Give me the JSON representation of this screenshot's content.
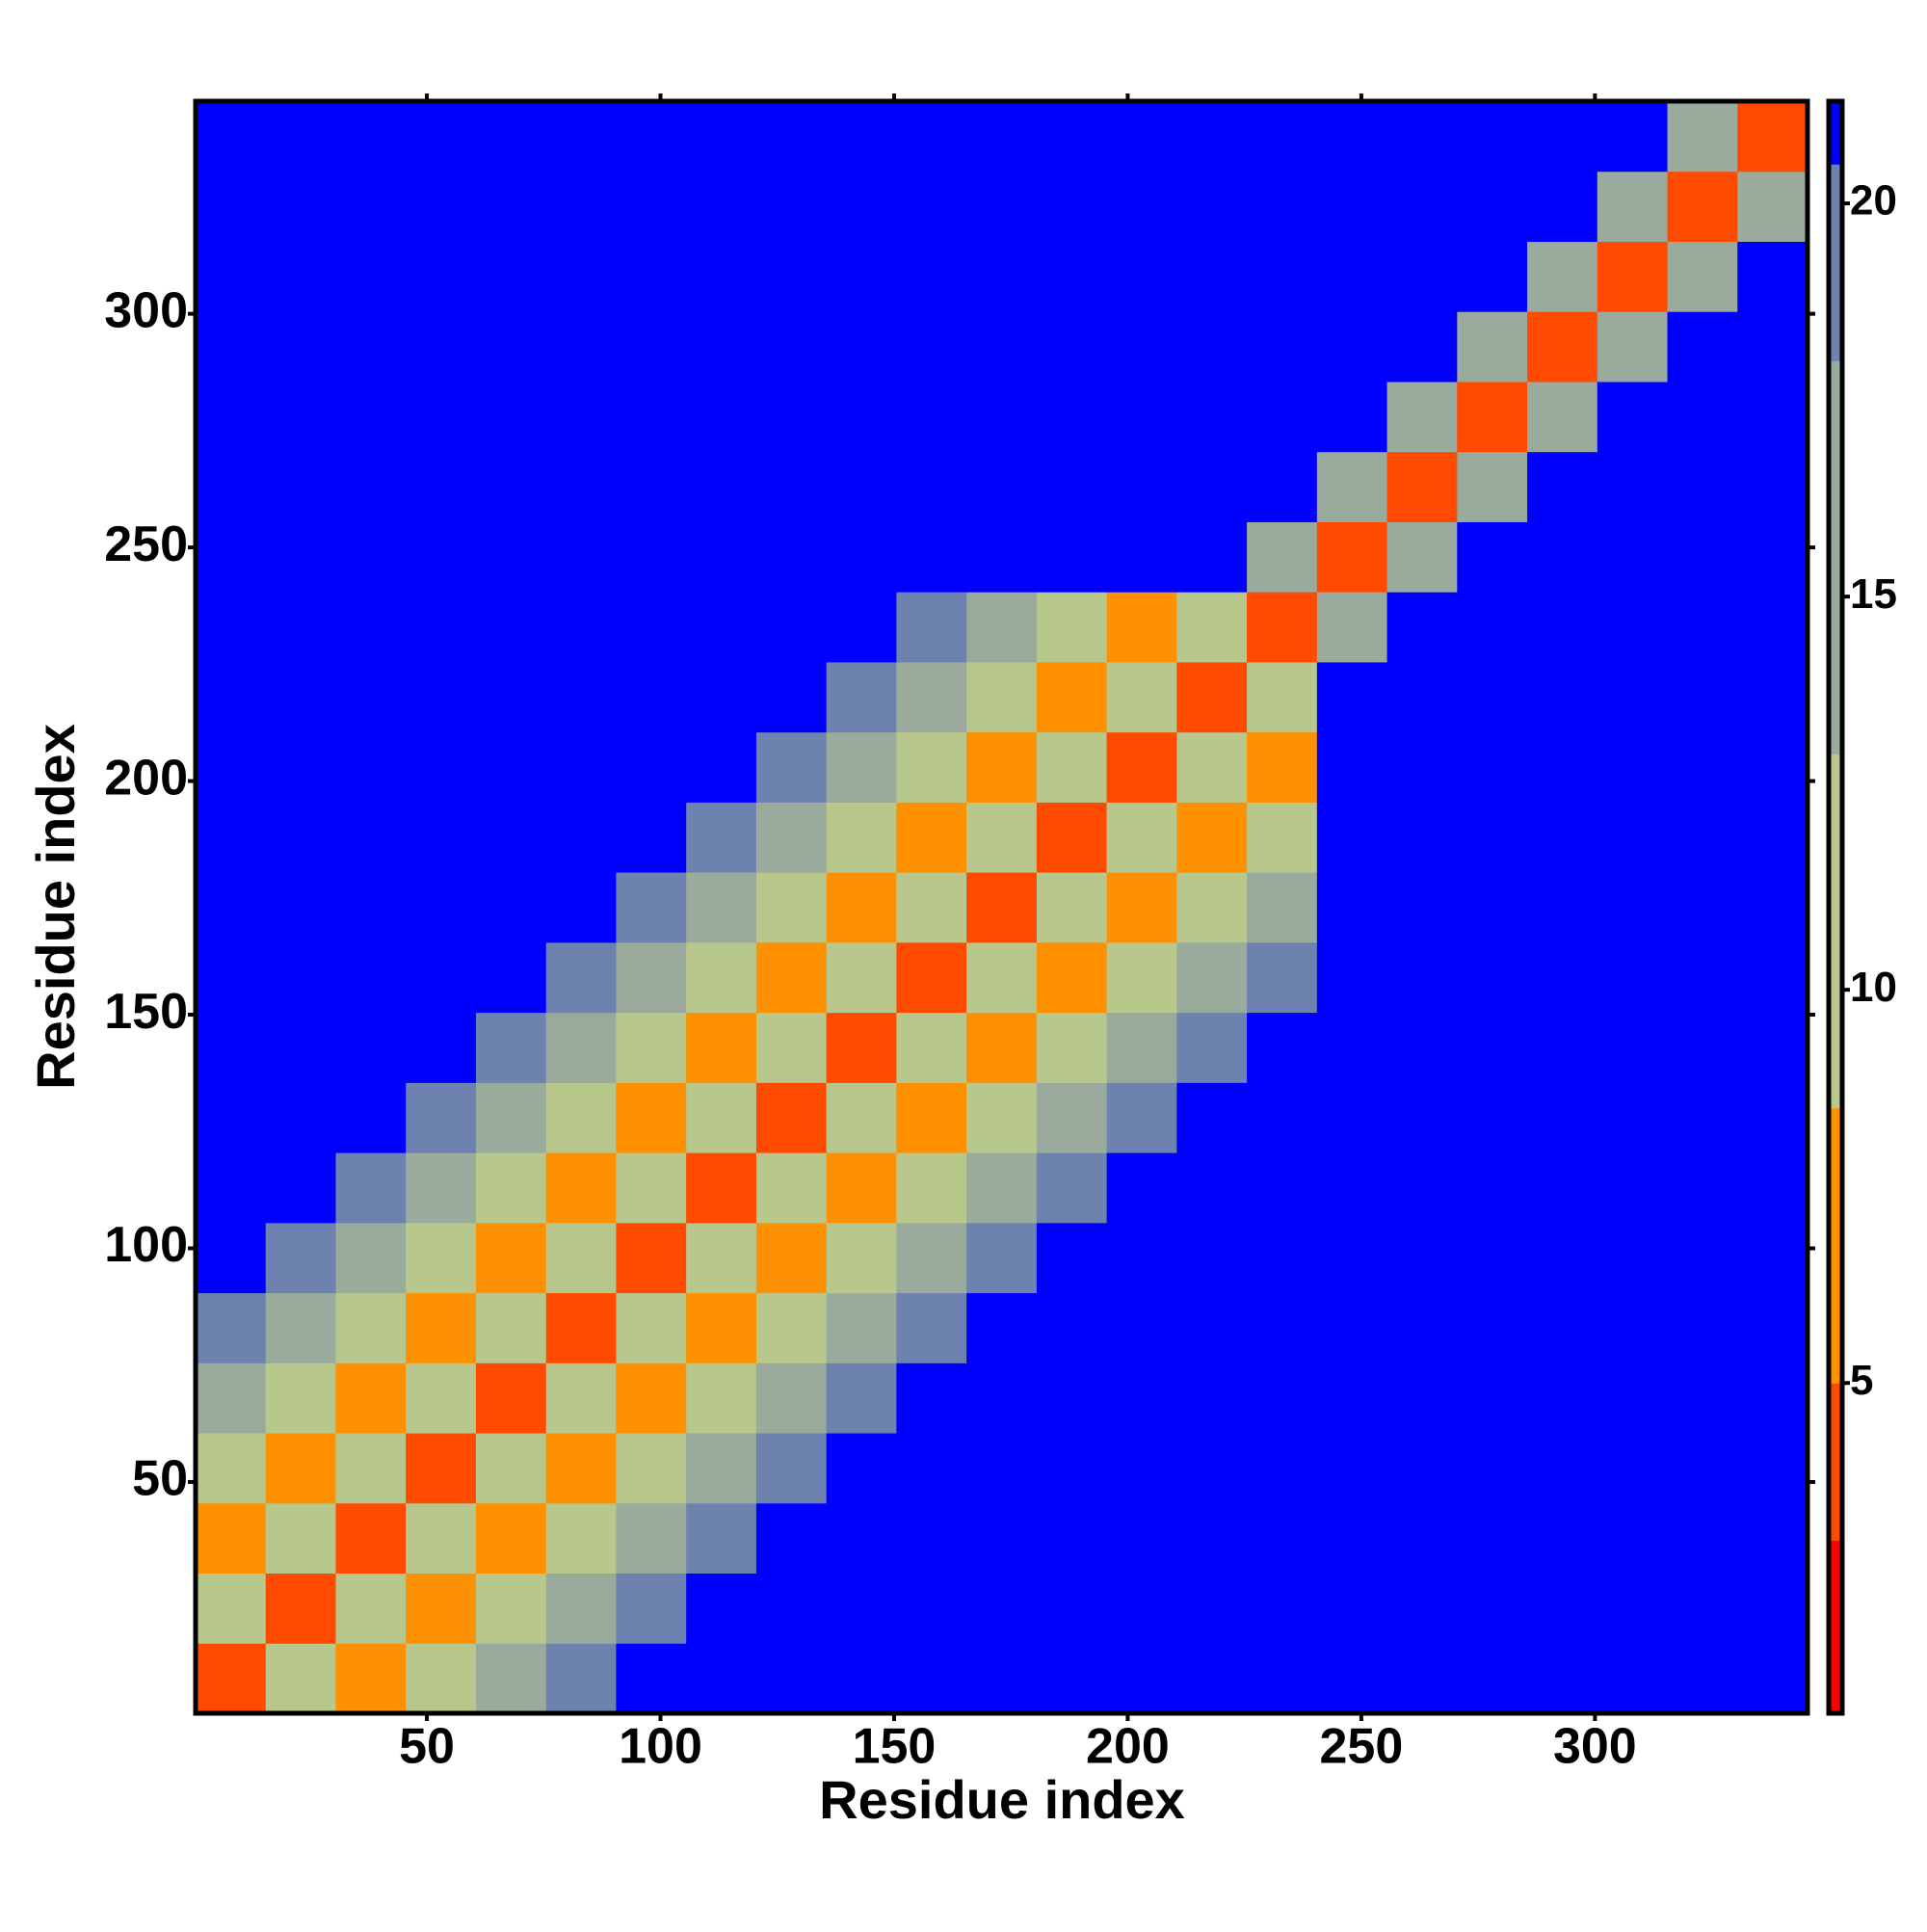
{
  "chart_data": {
    "type": "heatmap",
    "x_label": "Residue index",
    "y_label": "Residue index",
    "bins": [
      0.5,
      15.5,
      30.5,
      45.5,
      60.5,
      75.5,
      90.5,
      105.5,
      120.5,
      135.5,
      150.5,
      165.5,
      180.5,
      195.5,
      210.5,
      225.5,
      240.5,
      255.5,
      270.5,
      285.5,
      300.5,
      315.5,
      330.5,
      345.5
    ],
    "z": [
      [
        4,
        11,
        8,
        12,
        16,
        19,
        21,
        21,
        21,
        21,
        21,
        21,
        21,
        21,
        21,
        21,
        21,
        21,
        21,
        21,
        21,
        21,
        21
      ],
      [
        11,
        4,
        11,
        8,
        12,
        16,
        19,
        21,
        21,
        21,
        21,
        21,
        21,
        21,
        21,
        21,
        21,
        21,
        21,
        21,
        21,
        21,
        21
      ],
      [
        8,
        11,
        4,
        11,
        8,
        12,
        16,
        19,
        21,
        21,
        21,
        21,
        21,
        21,
        21,
        21,
        21,
        21,
        21,
        21,
        21,
        21,
        21
      ],
      [
        12,
        8,
        11,
        4,
        11,
        8,
        12,
        16,
        19,
        21,
        21,
        21,
        21,
        21,
        21,
        21,
        21,
        21,
        21,
        21,
        21,
        21,
        21
      ],
      [
        16,
        12,
        8,
        11,
        4,
        11,
        8,
        12,
        16,
        19,
        21,
        21,
        21,
        21,
        21,
        21,
        21,
        21,
        21,
        21,
        21,
        21,
        21
      ],
      [
        19,
        16,
        12,
        8,
        11,
        4,
        11,
        8,
        12,
        16,
        19,
        21,
        21,
        21,
        21,
        21,
        21,
        21,
        21,
        21,
        21,
        21,
        21
      ],
      [
        21,
        19,
        16,
        12,
        8,
        11,
        4,
        11,
        8,
        12,
        16,
        19,
        21,
        21,
        21,
        21,
        21,
        21,
        21,
        21,
        21,
        21,
        21
      ],
      [
        21,
        21,
        19,
        16,
        12,
        8,
        11,
        4,
        11,
        8,
        12,
        16,
        19,
        21,
        21,
        21,
        21,
        21,
        21,
        21,
        21,
        21,
        21
      ],
      [
        21,
        21,
        21,
        19,
        16,
        12,
        8,
        11,
        4,
        11,
        8,
        12,
        16,
        19,
        21,
        21,
        21,
        21,
        21,
        21,
        21,
        21,
        21
      ],
      [
        21,
        21,
        21,
        21,
        19,
        16,
        12,
        8,
        11,
        4,
        11,
        8,
        12,
        16,
        19,
        21,
        21,
        21,
        21,
        21,
        21,
        21,
        21
      ],
      [
        21,
        21,
        21,
        21,
        21,
        19,
        16,
        12,
        8,
        11,
        4,
        11,
        8,
        12,
        16,
        19,
        21,
        21,
        21,
        21,
        21,
        21,
        21
      ],
      [
        21,
        21,
        21,
        21,
        21,
        21,
        19,
        16,
        12,
        8,
        11,
        4,
        11,
        8,
        12,
        16,
        21,
        21,
        21,
        21,
        21,
        21,
        21
      ],
      [
        21,
        21,
        21,
        21,
        21,
        21,
        21,
        19,
        16,
        12,
        8,
        11,
        4,
        11,
        8,
        12,
        21,
        21,
        21,
        21,
        21,
        21,
        21
      ],
      [
        21,
        21,
        21,
        21,
        21,
        21,
        21,
        21,
        19,
        16,
        12,
        8,
        11,
        4,
        11,
        8,
        21,
        21,
        21,
        21,
        21,
        21,
        21
      ],
      [
        21,
        21,
        21,
        21,
        21,
        21,
        21,
        21,
        21,
        19,
        16,
        12,
        8,
        11,
        4,
        11,
        21,
        21,
        21,
        21,
        21,
        21,
        21
      ],
      [
        21,
        21,
        21,
        21,
        21,
        21,
        21,
        21,
        21,
        21,
        19,
        16,
        12,
        8,
        11,
        4,
        14,
        21,
        21,
        21,
        21,
        21,
        21
      ],
      [
        21,
        21,
        21,
        21,
        21,
        21,
        21,
        21,
        21,
        21,
        21,
        21,
        21,
        21,
        21,
        14,
        4,
        14,
        21,
        21,
        21,
        21,
        21
      ],
      [
        21,
        21,
        21,
        21,
        21,
        21,
        21,
        21,
        21,
        21,
        21,
        21,
        21,
        21,
        21,
        21,
        14,
        4,
        14,
        21,
        21,
        21,
        21
      ],
      [
        21,
        21,
        21,
        21,
        21,
        21,
        21,
        21,
        21,
        21,
        21,
        21,
        21,
        21,
        21,
        21,
        21,
        14,
        4,
        14,
        21,
        21,
        21
      ],
      [
        21,
        21,
        21,
        21,
        21,
        21,
        21,
        21,
        21,
        21,
        21,
        21,
        21,
        21,
        21,
        21,
        21,
        21,
        14,
        4,
        14,
        21,
        21
      ],
      [
        21,
        21,
        21,
        21,
        21,
        21,
        21,
        21,
        21,
        21,
        21,
        21,
        21,
        21,
        21,
        21,
        21,
        21,
        21,
        14,
        4,
        14,
        21
      ],
      [
        21,
        21,
        21,
        21,
        21,
        21,
        21,
        21,
        21,
        21,
        21,
        21,
        21,
        21,
        21,
        21,
        21,
        21,
        21,
        21,
        14,
        4,
        14
      ],
      [
        21,
        21,
        21,
        21,
        21,
        21,
        21,
        21,
        21,
        21,
        21,
        21,
        21,
        21,
        21,
        21,
        21,
        21,
        21,
        21,
        21,
        14,
        4
      ]
    ],
    "xlim": [
      0.5,
      345.5
    ],
    "ylim": [
      0.5,
      345.5
    ],
    "xticks": [
      50,
      100,
      150,
      200,
      250,
      300
    ],
    "yticks": [
      50,
      100,
      150,
      200,
      250,
      300
    ],
    "colorbar": {
      "ylim": [
        0.8,
        21.3
      ],
      "yticks": [
        5,
        10,
        15,
        20
      ],
      "breaks": [
        0.8,
        3,
        5,
        8.5,
        13,
        18,
        20.5,
        21.3
      ],
      "colors": [
        "#ff0000",
        "#ff4a00",
        "#ff9000",
        "#b8c88c",
        "#9aaa9c",
        "#6d82ae",
        "#0000ff"
      ]
    }
  }
}
